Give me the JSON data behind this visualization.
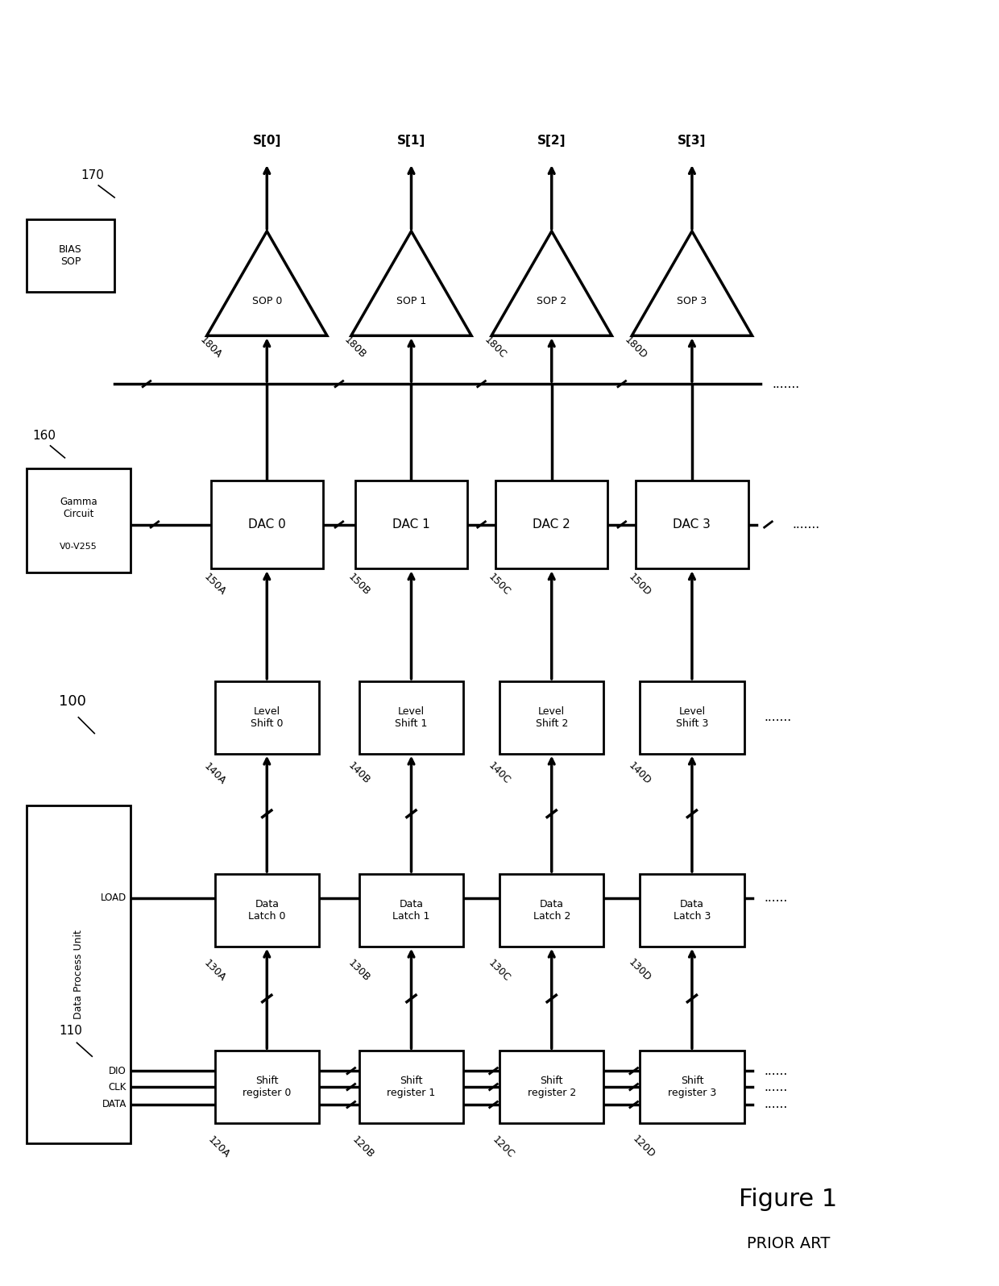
{
  "title": "Figure 1",
  "subtitle": "PRIOR ART",
  "fig_width": 12.4,
  "fig_height": 15.95,
  "bg_color": "#ffffff",
  "line_color": "#000000",
  "shift_registers": [
    "Shift\nregister 0",
    "Shift\nregister 1",
    "Shift\nregister 2",
    "Shift\nregister 3"
  ],
  "sr_ids": [
    "120A",
    "120B",
    "120C",
    "120D"
  ],
  "data_latches": [
    "Data\nLatch 0",
    "Data\nLatch 1",
    "Data\nLatch 2",
    "Data\nLatch 3"
  ],
  "dl_ids": [
    "130A",
    "130B",
    "130C",
    "130D"
  ],
  "level_shifts": [
    "Level\nShift 0",
    "Level\nShift 1",
    "Level\nShift 2",
    "Level\nShift 3"
  ],
  "ls_ids": [
    "140A",
    "140B",
    "140C",
    "140D"
  ],
  "dacs": [
    "DAC 0",
    "DAC 1",
    "DAC 2",
    "DAC 3"
  ],
  "dac_ids": [
    "150A",
    "150B",
    "150C",
    "150D"
  ],
  "sops": [
    "SOP 0",
    "SOP 1",
    "SOP 2",
    "SOP 3"
  ],
  "sop_ids": [
    "180A",
    "180B",
    "180C",
    "180D"
  ],
  "signals": [
    "S[0]",
    "S[1]",
    "S[2]",
    "S[3]"
  ],
  "dpu_label": "Data Process Unit",
  "gamma_label": "Gamma\nCircuit",
  "gamma_sublabel": "V0-V255",
  "bias_label": "BIAS\nSOP",
  "ref_100": "100",
  "ref_110": "110",
  "ref_160": "160",
  "ref_170": "170"
}
